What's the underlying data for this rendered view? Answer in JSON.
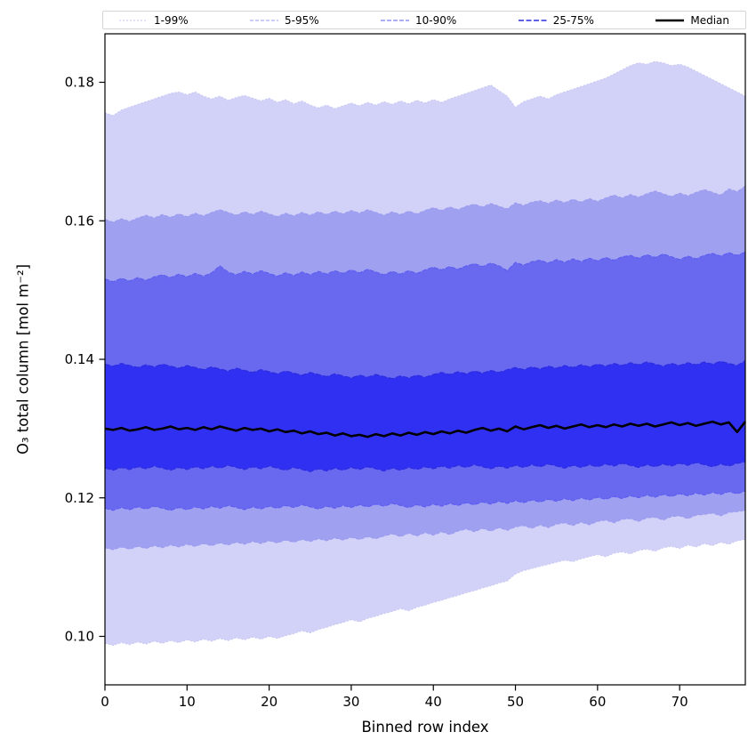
{
  "figure": {
    "background": "#ffffff",
    "legend": {
      "position": "top",
      "entries": [
        {
          "label": "1-99%",
          "color": "#c6c6f2",
          "dash": "2 2",
          "width": 1
        },
        {
          "label": "5-95%",
          "color": "#9a9af0",
          "dash": "4 2",
          "width": 1
        },
        {
          "label": "10-90%",
          "color": "#5c5cf0",
          "dash": "5 2",
          "width": 1.1
        },
        {
          "label": "25-75%",
          "color": "#2d2de0",
          "dash": "6 2.5",
          "width": 1.4
        },
        {
          "label": "Median",
          "color": "#000000",
          "dash": "",
          "width": 2.6
        }
      ]
    }
  },
  "chart_data": {
    "type": "area",
    "title": "",
    "xlabel": "Binned row index",
    "ylabel": "O₃ total column [mol m⁻²]",
    "xlim": [
      0,
      78
    ],
    "ylim": [
      0.093,
      0.187
    ],
    "grid": false,
    "legend_position": "top",
    "xticks": [
      0,
      10,
      20,
      30,
      40,
      50,
      60,
      70
    ],
    "xtick_labels": [
      "0",
      "10",
      "20",
      "30",
      "40",
      "50",
      "60",
      "70"
    ],
    "yticks": [
      0.1,
      0.12,
      0.14,
      0.16,
      0.18
    ],
    "ytick_labels": [
      "0.10",
      "0.12",
      "0.14",
      "0.16",
      "0.18"
    ],
    "x": [
      0,
      1,
      2,
      3,
      4,
      5,
      6,
      7,
      8,
      9,
      10,
      11,
      12,
      13,
      14,
      15,
      16,
      17,
      18,
      19,
      20,
      21,
      22,
      23,
      24,
      25,
      26,
      27,
      28,
      29,
      30,
      31,
      32,
      33,
      34,
      35,
      36,
      37,
      38,
      39,
      40,
      41,
      42,
      43,
      44,
      45,
      46,
      47,
      48,
      49,
      50,
      51,
      52,
      53,
      54,
      55,
      56,
      57,
      58,
      59,
      60,
      61,
      62,
      63,
      64,
      65,
      66,
      67,
      68,
      69,
      70,
      71,
      72,
      73,
      74,
      75,
      76,
      77,
      78
    ],
    "bands": [
      {
        "name": "1-99%",
        "fill": "#d2d2f8",
        "edge": "#c6c6f2",
        "dash": "2 2",
        "edgeWidth": 1,
        "lower": [
          0.099,
          0.0987,
          0.0991,
          0.0988,
          0.0992,
          0.0989,
          0.0993,
          0.099,
          0.0994,
          0.0991,
          0.0995,
          0.0992,
          0.0996,
          0.0993,
          0.0997,
          0.0994,
          0.0998,
          0.0995,
          0.0999,
          0.0996,
          0.1,
          0.0997,
          0.1001,
          0.1004,
          0.1008,
          0.1005,
          0.101,
          0.1013,
          0.1017,
          0.102,
          0.1024,
          0.1021,
          0.1026,
          0.1029,
          0.1033,
          0.1036,
          0.104,
          0.1037,
          0.1042,
          0.1045,
          0.1049,
          0.1052,
          0.1056,
          0.1059,
          0.1063,
          0.1066,
          0.107,
          0.1073,
          0.1077,
          0.108,
          0.109,
          0.1095,
          0.1098,
          0.1101,
          0.1104,
          0.1107,
          0.111,
          0.1108,
          0.1112,
          0.1115,
          0.1118,
          0.1115,
          0.112,
          0.1122,
          0.1119,
          0.1124,
          0.1126,
          0.1123,
          0.1128,
          0.113,
          0.1127,
          0.1132,
          0.1129,
          0.1134,
          0.1131,
          0.1136,
          0.1133,
          0.1138,
          0.114
        ],
        "upper": [
          0.1756,
          0.1752,
          0.176,
          0.1764,
          0.1768,
          0.1772,
          0.1776,
          0.178,
          0.1784,
          0.1786,
          0.1782,
          0.1786,
          0.178,
          0.1776,
          0.178,
          0.1774,
          0.1778,
          0.1781,
          0.1777,
          0.1773,
          0.1777,
          0.1771,
          0.1775,
          0.1769,
          0.1773,
          0.1767,
          0.1763,
          0.1767,
          0.1762,
          0.1766,
          0.177,
          0.1766,
          0.1771,
          0.1767,
          0.1772,
          0.1768,
          0.1773,
          0.1769,
          0.1774,
          0.177,
          0.1775,
          0.1771,
          0.1776,
          0.178,
          0.1784,
          0.1788,
          0.1792,
          0.1796,
          0.1788,
          0.178,
          0.1764,
          0.1772,
          0.1776,
          0.178,
          0.1776,
          0.1782,
          0.1786,
          0.179,
          0.1794,
          0.1798,
          0.1802,
          0.1806,
          0.1812,
          0.1818,
          0.1824,
          0.1828,
          0.1826,
          0.183,
          0.1828,
          0.1824,
          0.1826,
          0.1822,
          0.1816,
          0.181,
          0.1804,
          0.1798,
          0.1792,
          0.1786,
          0.178
        ]
      },
      {
        "name": "5-95%",
        "fill": "#a0a0f1",
        "edge": "#9a9af0",
        "dash": "4 2",
        "edgeWidth": 1,
        "lower": [
          0.1128,
          0.1125,
          0.1129,
          0.1126,
          0.113,
          0.1127,
          0.1131,
          0.1128,
          0.1132,
          0.1129,
          0.1133,
          0.113,
          0.1134,
          0.1131,
          0.1135,
          0.1132,
          0.1136,
          0.1133,
          0.1137,
          0.1134,
          0.1138,
          0.1135,
          0.1139,
          0.1136,
          0.114,
          0.1137,
          0.1141,
          0.1138,
          0.1142,
          0.1139,
          0.1143,
          0.114,
          0.1144,
          0.1141,
          0.1145,
          0.1148,
          0.1144,
          0.1149,
          0.1145,
          0.115,
          0.1146,
          0.1151,
          0.1147,
          0.1152,
          0.1155,
          0.1151,
          0.1156,
          0.1152,
          0.1157,
          0.1153,
          0.1158,
          0.116,
          0.1156,
          0.1161,
          0.1157,
          0.1162,
          0.1164,
          0.116,
          0.1165,
          0.1161,
          0.1166,
          0.1168,
          0.1164,
          0.1169,
          0.117,
          0.1166,
          0.1171,
          0.1172,
          0.1168,
          0.1173,
          0.1174,
          0.117,
          0.1175,
          0.1176,
          0.1178,
          0.1174,
          0.1179,
          0.118,
          0.1182
        ],
        "upper": [
          0.1602,
          0.1598,
          0.1603,
          0.1599,
          0.1604,
          0.1608,
          0.1604,
          0.1609,
          0.1605,
          0.161,
          0.1606,
          0.1611,
          0.1607,
          0.1612,
          0.1616,
          0.1612,
          0.1608,
          0.1613,
          0.1609,
          0.1614,
          0.161,
          0.1606,
          0.1611,
          0.1607,
          0.1612,
          0.1608,
          0.1613,
          0.1609,
          0.1614,
          0.161,
          0.1615,
          0.1611,
          0.1616,
          0.1612,
          0.1608,
          0.1613,
          0.1609,
          0.1614,
          0.161,
          0.1615,
          0.1619,
          0.1615,
          0.162,
          0.1616,
          0.1621,
          0.1624,
          0.162,
          0.1625,
          0.1621,
          0.1617,
          0.1626,
          0.1622,
          0.1627,
          0.1629,
          0.1625,
          0.163,
          0.1626,
          0.1631,
          0.1627,
          0.1632,
          0.1628,
          0.1633,
          0.1637,
          0.1633,
          0.1638,
          0.1634,
          0.1639,
          0.1643,
          0.1639,
          0.1635,
          0.164,
          0.1636,
          0.1641,
          0.1645,
          0.1641,
          0.1637,
          0.1646,
          0.1642,
          0.165
        ]
      },
      {
        "name": "10-90%",
        "fill": "#6969ef",
        "edge": "#5c5cf0",
        "dash": "5 2",
        "edgeWidth": 1.1,
        "lower": [
          0.1185,
          0.1182,
          0.1186,
          0.1183,
          0.1187,
          0.1184,
          0.1188,
          0.1185,
          0.1182,
          0.1186,
          0.1183,
          0.1187,
          0.1184,
          0.1188,
          0.1185,
          0.1189,
          0.1186,
          0.1183,
          0.1187,
          0.1184,
          0.1188,
          0.1185,
          0.1189,
          0.1186,
          0.119,
          0.1187,
          0.1184,
          0.1188,
          0.1185,
          0.1189,
          0.1186,
          0.119,
          0.1187,
          0.1191,
          0.1188,
          0.1192,
          0.1189,
          0.1186,
          0.119,
          0.1187,
          0.1191,
          0.1188,
          0.1192,
          0.1189,
          0.1193,
          0.119,
          0.1194,
          0.1191,
          0.1195,
          0.1192,
          0.1196,
          0.1193,
          0.1197,
          0.1194,
          0.1198,
          0.1195,
          0.1199,
          0.1196,
          0.12,
          0.1197,
          0.1201,
          0.1198,
          0.1202,
          0.1199,
          0.1203,
          0.12,
          0.1204,
          0.1201,
          0.1205,
          0.1202,
          0.1206,
          0.1203,
          0.1207,
          0.1204,
          0.1208,
          0.1205,
          0.1209,
          0.1206,
          0.121
        ],
        "upper": [
          0.1516,
          0.1512,
          0.1517,
          0.1513,
          0.1518,
          0.1514,
          0.1519,
          0.1522,
          0.1518,
          0.1523,
          0.1519,
          0.1524,
          0.152,
          0.1525,
          0.1535,
          0.1526,
          0.1522,
          0.1527,
          0.1523,
          0.1528,
          0.1524,
          0.152,
          0.1525,
          0.1521,
          0.1526,
          0.1522,
          0.1527,
          0.1523,
          0.1528,
          0.1524,
          0.1529,
          0.1525,
          0.153,
          0.1526,
          0.1522,
          0.1527,
          0.1523,
          0.1528,
          0.1524,
          0.1529,
          0.1533,
          0.1529,
          0.1534,
          0.153,
          0.1535,
          0.1538,
          0.1534,
          0.1539,
          0.1535,
          0.1528,
          0.154,
          0.1536,
          0.1541,
          0.1543,
          0.1539,
          0.1544,
          0.154,
          0.1545,
          0.1541,
          0.1546,
          0.1542,
          0.1547,
          0.1543,
          0.1548,
          0.155,
          0.1546,
          0.1551,
          0.1547,
          0.1552,
          0.1548,
          0.1544,
          0.1549,
          0.1545,
          0.155,
          0.1553,
          0.1549,
          0.1554,
          0.155,
          0.1555
        ]
      },
      {
        "name": "25-75%",
        "fill": "#3030f3",
        "edge": "#2d2de0",
        "dash": "6 2.5",
        "edgeWidth": 1.3,
        "lower": [
          0.1243,
          0.124,
          0.1244,
          0.1241,
          0.1245,
          0.1242,
          0.1246,
          0.1243,
          0.124,
          0.1244,
          0.1241,
          0.1245,
          0.1242,
          0.1246,
          0.1243,
          0.1247,
          0.1244,
          0.1241,
          0.1245,
          0.1242,
          0.1246,
          0.1243,
          0.124,
          0.1244,
          0.1241,
          0.1238,
          0.1242,
          0.1239,
          0.1243,
          0.124,
          0.1244,
          0.1241,
          0.1245,
          0.1242,
          0.1239,
          0.1243,
          0.124,
          0.1244,
          0.1241,
          0.1245,
          0.1242,
          0.1246,
          0.1243,
          0.1247,
          0.1244,
          0.1248,
          0.1245,
          0.1242,
          0.1246,
          0.1243,
          0.1247,
          0.1244,
          0.1248,
          0.1245,
          0.1249,
          0.1246,
          0.1243,
          0.1247,
          0.1244,
          0.1248,
          0.1245,
          0.1249,
          0.1246,
          0.125,
          0.1247,
          0.1244,
          0.1248,
          0.1245,
          0.1249,
          0.1246,
          0.125,
          0.1247,
          0.1251,
          0.1248,
          0.1245,
          0.1249,
          0.1246,
          0.125,
          0.1252
        ],
        "upper": [
          0.1393,
          0.139,
          0.1394,
          0.1391,
          0.1388,
          0.1392,
          0.1389,
          0.1393,
          0.139,
          0.1387,
          0.1391,
          0.1388,
          0.1385,
          0.1389,
          0.1386,
          0.1383,
          0.1387,
          0.1384,
          0.1381,
          0.1385,
          0.1382,
          0.1379,
          0.1383,
          0.138,
          0.1377,
          0.1381,
          0.1378,
          0.1375,
          0.1379,
          0.1376,
          0.1373,
          0.1377,
          0.1374,
          0.1378,
          0.1375,
          0.1372,
          0.1376,
          0.1373,
          0.1377,
          0.1374,
          0.1378,
          0.1381,
          0.1378,
          0.1382,
          0.1379,
          0.1383,
          0.138,
          0.1384,
          0.1381,
          0.1385,
          0.1388,
          0.1385,
          0.1389,
          0.1386,
          0.139,
          0.1387,
          0.1391,
          0.1388,
          0.1392,
          0.1389,
          0.1393,
          0.139,
          0.1394,
          0.1391,
          0.1395,
          0.1392,
          0.1396,
          0.1393,
          0.139,
          0.1394,
          0.1391,
          0.1395,
          0.1392,
          0.1396,
          0.1393,
          0.1397,
          0.1394,
          0.1391,
          0.1398
        ]
      }
    ],
    "median": {
      "name": "Median",
      "color": "#000000",
      "width": 2.6,
      "values": [
        0.13,
        0.1298,
        0.1301,
        0.1297,
        0.1299,
        0.1302,
        0.1298,
        0.13,
        0.1303,
        0.1299,
        0.1301,
        0.1298,
        0.1302,
        0.1299,
        0.1303,
        0.13,
        0.1297,
        0.1301,
        0.1298,
        0.13,
        0.1296,
        0.1299,
        0.1295,
        0.1297,
        0.1293,
        0.1296,
        0.1292,
        0.1294,
        0.129,
        0.1293,
        0.1289,
        0.1291,
        0.1288,
        0.1292,
        0.1289,
        0.1293,
        0.129,
        0.1294,
        0.1291,
        0.1295,
        0.1292,
        0.1296,
        0.1293,
        0.1297,
        0.1294,
        0.1298,
        0.1301,
        0.1297,
        0.13,
        0.1296,
        0.1303,
        0.1299,
        0.1302,
        0.1305,
        0.1301,
        0.1304,
        0.13,
        0.1303,
        0.1306,
        0.1302,
        0.1305,
        0.1302,
        0.1306,
        0.1303,
        0.1307,
        0.1304,
        0.1307,
        0.1303,
        0.1306,
        0.1309,
        0.1305,
        0.1308,
        0.1304,
        0.1307,
        0.131,
        0.1306,
        0.1309,
        0.1295,
        0.131
      ]
    }
  }
}
